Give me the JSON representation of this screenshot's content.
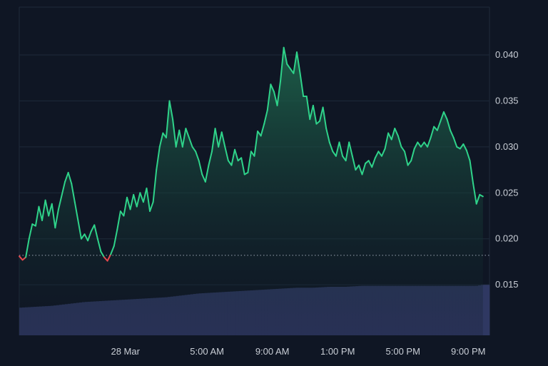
{
  "colors": {
    "background": "#0f1624",
    "grid": "#1f2a3a",
    "up_line": "#2fd38a",
    "down_line": "#e5484d",
    "fill_top": "#1f6b4f",
    "fill_bottom": "#0f1624",
    "volume": "#2f3862",
    "baseline": "#9aa3b2",
    "tick_text": "#c9ced6"
  },
  "chart_data": {
    "type": "area",
    "title": "",
    "xlabel": "",
    "ylabel": "",
    "y_axis_position": "right",
    "grid": "horizontal",
    "ylim": [
      0.0095,
      0.0452
    ],
    "yticks": [
      0.015,
      0.02,
      0.025,
      0.03,
      0.035,
      0.04
    ],
    "ytick_labels": [
      "0.015",
      "0.020",
      "0.025",
      "0.030",
      "0.035",
      "0.040"
    ],
    "xlim_hours": [
      -6.5,
      22.3
    ],
    "x_tick_labels": [
      {
        "label": "28 Mar",
        "hour": 0
      },
      {
        "label": "5:00 AM",
        "hour": 5
      },
      {
        "label": "9:00 AM",
        "hour": 9
      },
      {
        "label": "1:00 PM",
        "hour": 13
      },
      {
        "label": "5:00 PM",
        "hour": 17
      },
      {
        "label": "9:00 PM",
        "hour": 21
      }
    ],
    "baseline_value": 0.0182,
    "series": [
      {
        "values": [
          [
            -6.5,
            0.0181
          ],
          [
            -6.3,
            0.0177
          ],
          [
            -6.1,
            0.018
          ],
          [
            -5.9,
            0.02
          ],
          [
            -5.7,
            0.0216
          ],
          [
            -5.5,
            0.0214
          ],
          [
            -5.3,
            0.0235
          ],
          [
            -5.1,
            0.022
          ],
          [
            -4.9,
            0.0242
          ],
          [
            -4.7,
            0.0225
          ],
          [
            -4.5,
            0.0238
          ],
          [
            -4.3,
            0.0212
          ],
          [
            -4.1,
            0.0232
          ],
          [
            -3.9,
            0.0247
          ],
          [
            -3.7,
            0.0262
          ],
          [
            -3.5,
            0.0272
          ],
          [
            -3.3,
            0.026
          ],
          [
            -3.1,
            0.024
          ],
          [
            -2.9,
            0.022
          ],
          [
            -2.7,
            0.02
          ],
          [
            -2.5,
            0.0205
          ],
          [
            -2.3,
            0.0198
          ],
          [
            -2.1,
            0.0208
          ],
          [
            -1.9,
            0.0215
          ],
          [
            -1.7,
            0.02
          ],
          [
            -1.5,
            0.0186
          ],
          [
            -1.3,
            0.018
          ],
          [
            -1.1,
            0.0176
          ],
          [
            -0.9,
            0.0183
          ],
          [
            -0.7,
            0.0192
          ],
          [
            -0.5,
            0.021
          ],
          [
            -0.3,
            0.023
          ],
          [
            -0.1,
            0.0225
          ],
          [
            0.1,
            0.0245
          ],
          [
            0.3,
            0.0232
          ],
          [
            0.5,
            0.0248
          ],
          [
            0.7,
            0.0235
          ],
          [
            0.9,
            0.025
          ],
          [
            1.1,
            0.024
          ],
          [
            1.3,
            0.0255
          ],
          [
            1.5,
            0.023
          ],
          [
            1.7,
            0.024
          ],
          [
            1.9,
            0.0275
          ],
          [
            2.1,
            0.03
          ],
          [
            2.3,
            0.0315
          ],
          [
            2.5,
            0.031
          ],
          [
            2.7,
            0.035
          ],
          [
            2.9,
            0.033
          ],
          [
            3.1,
            0.03
          ],
          [
            3.3,
            0.0318
          ],
          [
            3.5,
            0.03
          ],
          [
            3.7,
            0.032
          ],
          [
            3.9,
            0.031
          ],
          [
            4.1,
            0.03
          ],
          [
            4.3,
            0.0295
          ],
          [
            4.5,
            0.0285
          ],
          [
            4.7,
            0.027
          ],
          [
            4.9,
            0.0262
          ],
          [
            5.1,
            0.028
          ],
          [
            5.3,
            0.0295
          ],
          [
            5.5,
            0.032
          ],
          [
            5.7,
            0.03
          ],
          [
            5.9,
            0.0316
          ],
          [
            6.1,
            0.03
          ],
          [
            6.3,
            0.0285
          ],
          [
            6.5,
            0.028
          ],
          [
            6.7,
            0.0297
          ],
          [
            6.9,
            0.0285
          ],
          [
            7.1,
            0.0288
          ],
          [
            7.3,
            0.027
          ],
          [
            7.5,
            0.0272
          ],
          [
            7.7,
            0.0295
          ],
          [
            7.9,
            0.029
          ],
          [
            8.1,
            0.0317
          ],
          [
            8.3,
            0.0312
          ],
          [
            8.5,
            0.0325
          ],
          [
            8.7,
            0.034
          ],
          [
            8.9,
            0.0368
          ],
          [
            9.1,
            0.036
          ],
          [
            9.3,
            0.0345
          ],
          [
            9.5,
            0.0372
          ],
          [
            9.7,
            0.0408
          ],
          [
            9.9,
            0.039
          ],
          [
            10.1,
            0.0385
          ],
          [
            10.3,
            0.038
          ],
          [
            10.5,
            0.0403
          ],
          [
            10.7,
            0.038
          ],
          [
            10.9,
            0.0355
          ],
          [
            11.1,
            0.0355
          ],
          [
            11.3,
            0.033
          ],
          [
            11.5,
            0.0345
          ],
          [
            11.7,
            0.0325
          ],
          [
            11.9,
            0.0328
          ],
          [
            12.1,
            0.0343
          ],
          [
            12.3,
            0.032
          ],
          [
            12.5,
            0.0305
          ],
          [
            12.7,
            0.0295
          ],
          [
            12.9,
            0.029
          ],
          [
            13.1,
            0.0305
          ],
          [
            13.3,
            0.029
          ],
          [
            13.5,
            0.0285
          ],
          [
            13.7,
            0.0305
          ],
          [
            13.9,
            0.029
          ],
          [
            14.1,
            0.0275
          ],
          [
            14.3,
            0.028
          ],
          [
            14.5,
            0.027
          ],
          [
            14.7,
            0.0282
          ],
          [
            14.9,
            0.0285
          ],
          [
            15.1,
            0.0278
          ],
          [
            15.3,
            0.0288
          ],
          [
            15.5,
            0.0295
          ],
          [
            15.7,
            0.029
          ],
          [
            15.9,
            0.0298
          ],
          [
            16.1,
            0.0315
          ],
          [
            16.3,
            0.0308
          ],
          [
            16.5,
            0.032
          ],
          [
            16.7,
            0.0312
          ],
          [
            16.9,
            0.03
          ],
          [
            17.1,
            0.0295
          ],
          [
            17.3,
            0.028
          ],
          [
            17.5,
            0.0285
          ],
          [
            17.7,
            0.0298
          ],
          [
            17.9,
            0.0305
          ],
          [
            18.1,
            0.03
          ],
          [
            18.3,
            0.0305
          ],
          [
            18.5,
            0.03
          ],
          [
            18.7,
            0.031
          ],
          [
            18.9,
            0.0322
          ],
          [
            19.1,
            0.0318
          ],
          [
            19.3,
            0.0328
          ],
          [
            19.5,
            0.0338
          ],
          [
            19.7,
            0.033
          ],
          [
            19.9,
            0.0318
          ],
          [
            20.1,
            0.031
          ],
          [
            20.3,
            0.03
          ],
          [
            20.5,
            0.0298
          ],
          [
            20.7,
            0.0303
          ],
          [
            20.9,
            0.0296
          ],
          [
            21.1,
            0.0285
          ],
          [
            21.3,
            0.026
          ],
          [
            21.5,
            0.0238
          ],
          [
            21.7,
            0.0248
          ],
          [
            21.9,
            0.0246
          ]
        ]
      }
    ],
    "volume": {
      "relative_levels": [
        [
          -6.5,
          0.29
        ],
        [
          -5.5,
          0.3
        ],
        [
          -4.5,
          0.31
        ],
        [
          -3.5,
          0.33
        ],
        [
          -2.5,
          0.35
        ],
        [
          -1.5,
          0.36
        ],
        [
          -0.5,
          0.37
        ],
        [
          0.5,
          0.38
        ],
        [
          1.5,
          0.39
        ],
        [
          2.5,
          0.4
        ],
        [
          3.5,
          0.42
        ],
        [
          4.5,
          0.44
        ],
        [
          5.5,
          0.45
        ],
        [
          6.5,
          0.46
        ],
        [
          7.5,
          0.47
        ],
        [
          8.5,
          0.48
        ],
        [
          9.5,
          0.49
        ],
        [
          10.5,
          0.5
        ],
        [
          11.5,
          0.5
        ],
        [
          12.5,
          0.51
        ],
        [
          13.5,
          0.51
        ],
        [
          14.5,
          0.52
        ],
        [
          15.5,
          0.52
        ],
        [
          16.5,
          0.52
        ],
        [
          17.5,
          0.52
        ],
        [
          18.5,
          0.52
        ],
        [
          19.5,
          0.52
        ],
        [
          20.5,
          0.52
        ],
        [
          21.5,
          0.52
        ],
        [
          21.9,
          0.53
        ]
      ]
    }
  }
}
